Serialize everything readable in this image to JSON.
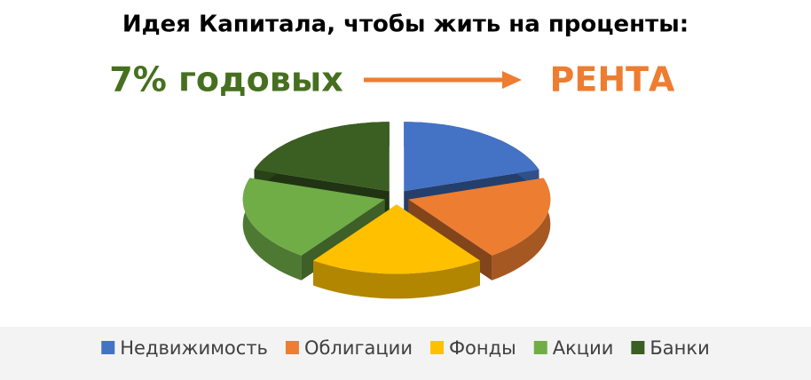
{
  "chart_data": {
    "type": "pie",
    "title": "Идея Капитала, чтобы жить на проценты:",
    "annotations": [
      "7% годовых",
      "РЕНТА"
    ],
    "categories": [
      "Недвижимость",
      "Облигации",
      "Фонды",
      "Акции",
      "Банки"
    ],
    "values": [
      20,
      20,
      20,
      20,
      20
    ],
    "colors": [
      "#4472c4",
      "#ed7d31",
      "#ffc000",
      "#70ad47",
      "#3b5e22"
    ],
    "legend": "bottom"
  }
}
